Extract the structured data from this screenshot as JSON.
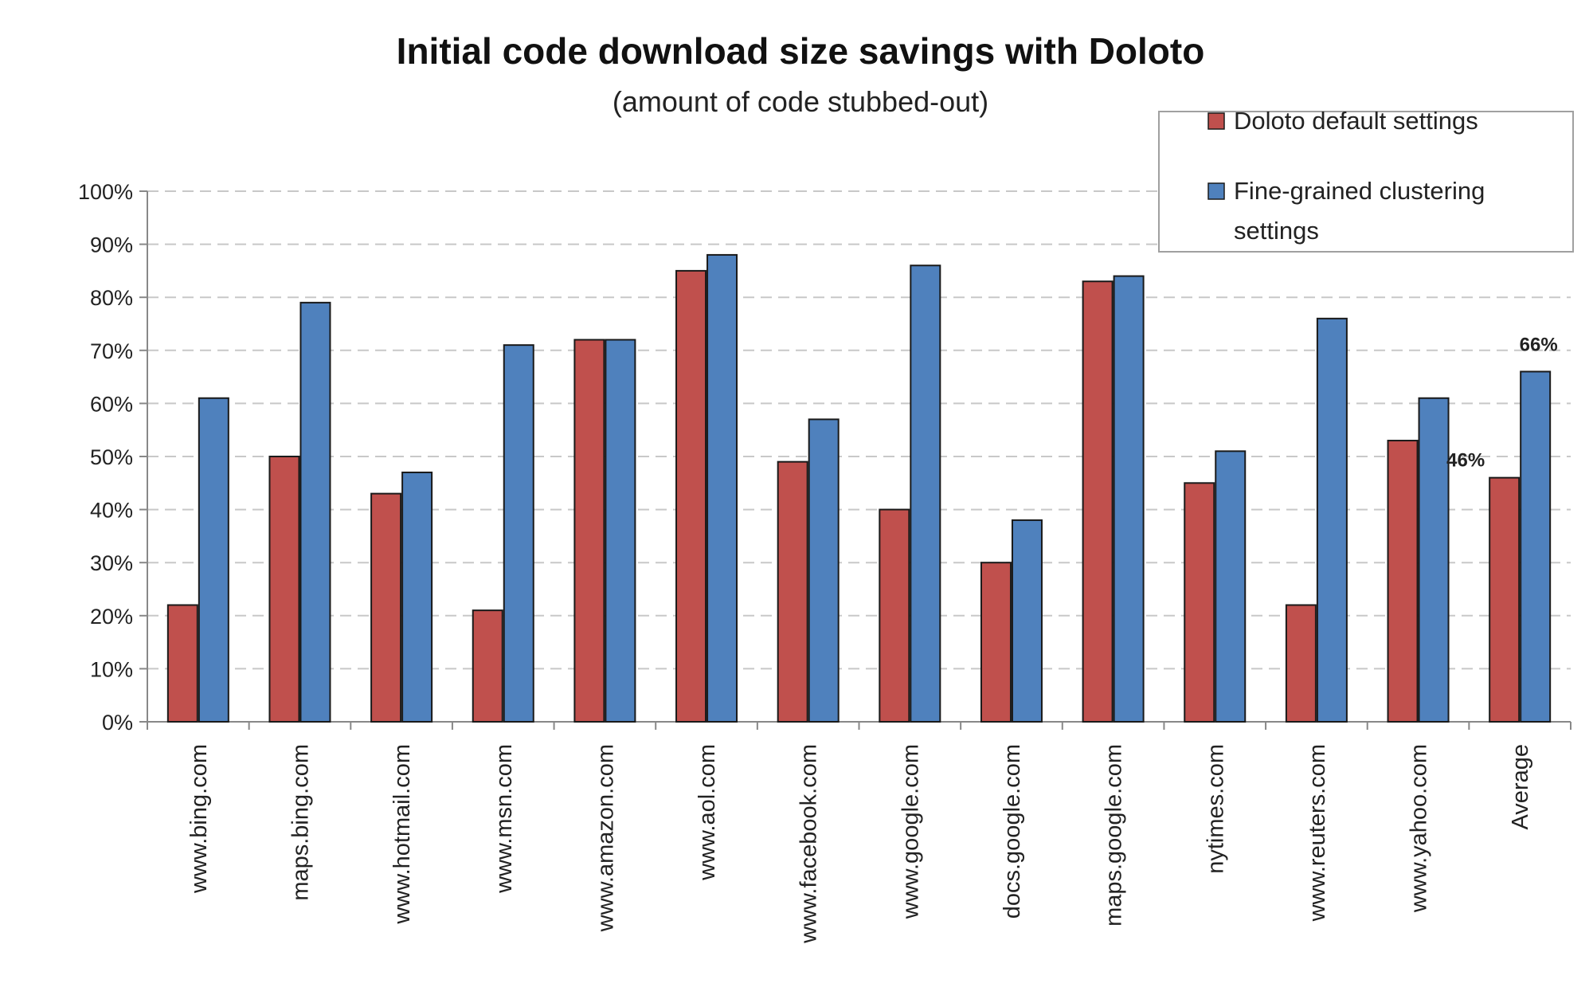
{
  "chart_data": {
    "type": "bar",
    "title": "Initial code download size savings with Doloto",
    "subtitle": "(amount of code stubbed-out)",
    "categories": [
      "www.bing.com",
      "maps.bing.com",
      "www.hotmail.com",
      "www.msn.com",
      "www.amazon.com",
      "www.aol.com",
      "www.facebook.com",
      "www.google.com",
      "docs.google.com",
      "maps.google.com",
      "nytimes.com",
      "www.reuters.com",
      "www.yahoo.com",
      "Average"
    ],
    "series": [
      {
        "name": "Doloto default settings",
        "color": "#c0504d",
        "values": [
          22,
          50,
          43,
          21,
          72,
          85,
          49,
          40,
          30,
          83,
          45,
          22,
          53,
          46
        ]
      },
      {
        "name": "Fine-grained clustering settings",
        "color": "#4f81bd",
        "values": [
          61,
          79,
          47,
          71,
          72,
          88,
          57,
          86,
          38,
          84,
          51,
          76,
          61,
          66
        ]
      }
    ],
    "ylim": [
      0,
      100
    ],
    "yticks": [
      "0%",
      "10%",
      "20%",
      "30%",
      "40%",
      "50%",
      "60%",
      "70%",
      "80%",
      "90%",
      "100%"
    ],
    "grid": true,
    "legend_position": "top-right",
    "data_labels": [
      {
        "category": "Average",
        "series": "Doloto default settings",
        "text": "46%"
      },
      {
        "category": "Average",
        "series": "Fine-grained clustering settings",
        "text": "66%"
      }
    ]
  }
}
